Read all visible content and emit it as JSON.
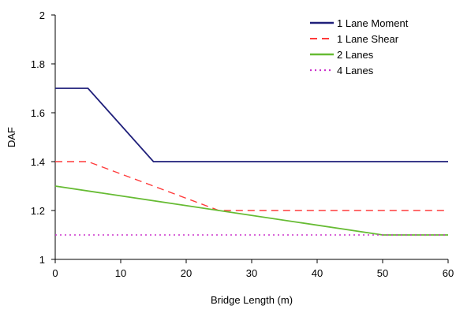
{
  "chart_data": {
    "type": "line",
    "title": "",
    "xlabel": "Bridge Length (m)",
    "ylabel": "DAF",
    "xlim": [
      0,
      60
    ],
    "ylim": [
      1,
      2
    ],
    "xticks": [
      0,
      10,
      20,
      30,
      40,
      50,
      60
    ],
    "yticks": [
      1,
      1.2,
      1.4,
      1.6,
      1.8,
      2
    ],
    "xtick_labels": [
      "0",
      "10",
      "20",
      "30",
      "40",
      "50",
      "60"
    ],
    "ytick_labels": [
      "1",
      "1.2",
      "1.4",
      "1.6",
      "1.8",
      "2"
    ],
    "grid": false,
    "legend_position": "top-right",
    "series": [
      {
        "name": "1 Lane Moment",
        "color": "#1f1f7a",
        "style": "solid",
        "x": [
          0,
          5,
          15,
          60
        ],
        "y": [
          1.7,
          1.7,
          1.4,
          1.4
        ]
      },
      {
        "name": "1 Lane Shear",
        "color": "#ff3b3b",
        "style": "dashed",
        "x": [
          0,
          5,
          25,
          60
        ],
        "y": [
          1.4,
          1.4,
          1.2,
          1.2
        ]
      },
      {
        "name": "2 Lanes",
        "color": "#66bb33",
        "style": "solid",
        "x": [
          0,
          50,
          60
        ],
        "y": [
          1.3,
          1.1,
          1.1
        ]
      },
      {
        "name": "4 Lanes",
        "color": "#cc33cc",
        "style": "dotted",
        "x": [
          0,
          60
        ],
        "y": [
          1.1,
          1.1
        ]
      }
    ]
  }
}
